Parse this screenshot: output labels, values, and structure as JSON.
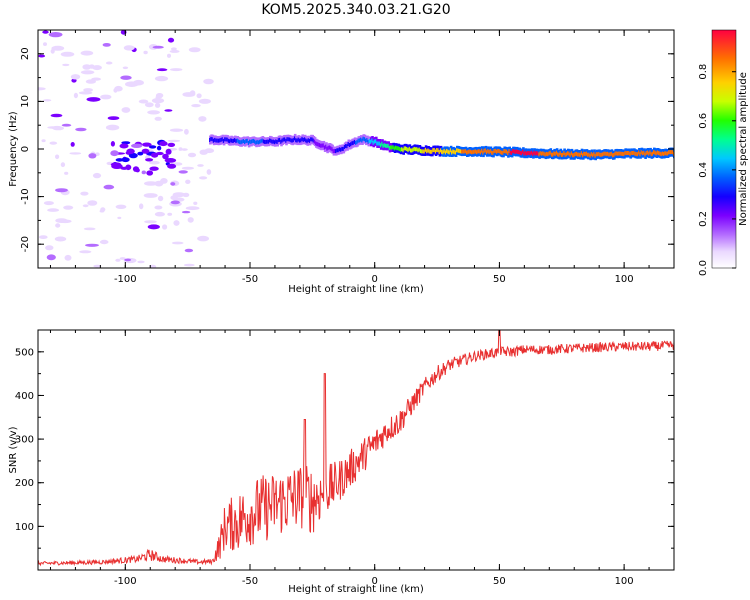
{
  "title": "KOM5.2025.340.03.21.G20",
  "colors": {
    "snr_line": "#e83030",
    "colormap": [
      "#ffffff",
      "#ead8ff",
      "#b46cff",
      "#7b00ff",
      "#1400ff",
      "#0060ff",
      "#00c8ff",
      "#00ff90",
      "#22ff00",
      "#c8ff00",
      "#ffd000",
      "#ff7000",
      "#ff0040"
    ]
  },
  "chart_data": [
    {
      "type": "heatmap",
      "name": "spectrogram",
      "xlabel": "Height of straight line (km)",
      "ylabel": "Frequency (Hz)",
      "xlim": [
        -135,
        120
      ],
      "ylim": [
        -25,
        25
      ],
      "xticks": [
        -100,
        -50,
        0,
        50,
        100
      ],
      "xtick_labels": [
        "-100",
        "-50",
        "0",
        "50",
        "100"
      ],
      "yticks": [
        -20,
        -10,
        0,
        10,
        20
      ],
      "ytick_labels": [
        "-20",
        "-10",
        "0",
        "10",
        "20"
      ],
      "colorbar": {
        "label": "Normalized spectral amplitude",
        "range": [
          0,
          0.97
        ],
        "ticks": [
          0.0,
          0.2,
          0.4,
          0.6,
          0.8
        ],
        "tick_labels": [
          "0.0",
          "0.2",
          "0.4",
          "0.6",
          "0.8"
        ]
      },
      "ridge": {
        "x": [
          -66,
          -60,
          -50,
          -40,
          -32,
          -25,
          -20,
          -15,
          -10,
          -5,
          0,
          5,
          10,
          20,
          30,
          40,
          50,
          60,
          70,
          80,
          90,
          100,
          110,
          120
        ],
        "freq": [
          2.0,
          1.8,
          1.5,
          1.6,
          2.0,
          1.8,
          0.5,
          -0.5,
          1.0,
          2.0,
          1.5,
          0.5,
          0.0,
          -0.3,
          -0.5,
          -0.5,
          -0.6,
          -0.8,
          -1.0,
          -1.1,
          -1.2,
          -1.0,
          -0.9,
          -0.8
        ],
        "amplitude": [
          0.3,
          0.35,
          0.4,
          0.35,
          0.3,
          0.3,
          0.25,
          0.3,
          0.35,
          0.4,
          0.5,
          0.6,
          0.7,
          0.8,
          0.85,
          0.9,
          0.95,
          0.97,
          0.95,
          0.95,
          0.95,
          0.93,
          0.9,
          0.9
        ]
      }
    },
    {
      "type": "line",
      "name": "snr",
      "xlabel": "Height of straight line (km)",
      "ylabel": "SNR (v/v)",
      "xlim": [
        -135,
        120
      ],
      "ylim": [
        0,
        550
      ],
      "xticks": [
        -100,
        -50,
        0,
        50,
        100
      ],
      "xtick_labels": [
        "-100",
        "-50",
        "0",
        "50",
        "100"
      ],
      "yticks": [
        100,
        200,
        300,
        400,
        500
      ],
      "ytick_labels": [
        "100",
        "200",
        "300",
        "400",
        "500"
      ],
      "series": [
        {
          "name": "SNR",
          "x": [
            -135,
            -110,
            -95,
            -90,
            -85,
            -70,
            -65,
            -62,
            -60,
            -55,
            -50,
            -45,
            -40,
            -35,
            -30,
            -25,
            -20,
            -15,
            -10,
            -5,
            0,
            5,
            10,
            15,
            20,
            25,
            30,
            35,
            40,
            45,
            50,
            55,
            60,
            70,
            80,
            90,
            100,
            110,
            120
          ],
          "y": [
            15,
            18,
            25,
            35,
            25,
            18,
            20,
            60,
            100,
            110,
            130,
            140,
            150,
            160,
            170,
            160,
            180,
            200,
            230,
            260,
            290,
            320,
            340,
            380,
            420,
            450,
            470,
            480,
            490,
            495,
            500,
            500,
            505,
            505,
            508,
            510,
            512,
            512,
            515
          ],
          "noise_amplitude": [
            4,
            5,
            8,
            14,
            8,
            5,
            6,
            35,
            55,
            70,
            75,
            80,
            75,
            80,
            75,
            80,
            60,
            50,
            45,
            40,
            35,
            30,
            30,
            25,
            20,
            18,
            15,
            14,
            12,
            12,
            12,
            12,
            11,
            11,
            11,
            11,
            11,
            11,
            11
          ]
        }
      ],
      "peaks": [
        {
          "x": -28,
          "y": 345
        },
        {
          "x": -20,
          "y": 450
        },
        {
          "x": 50,
          "y": 550
        }
      ]
    }
  ]
}
